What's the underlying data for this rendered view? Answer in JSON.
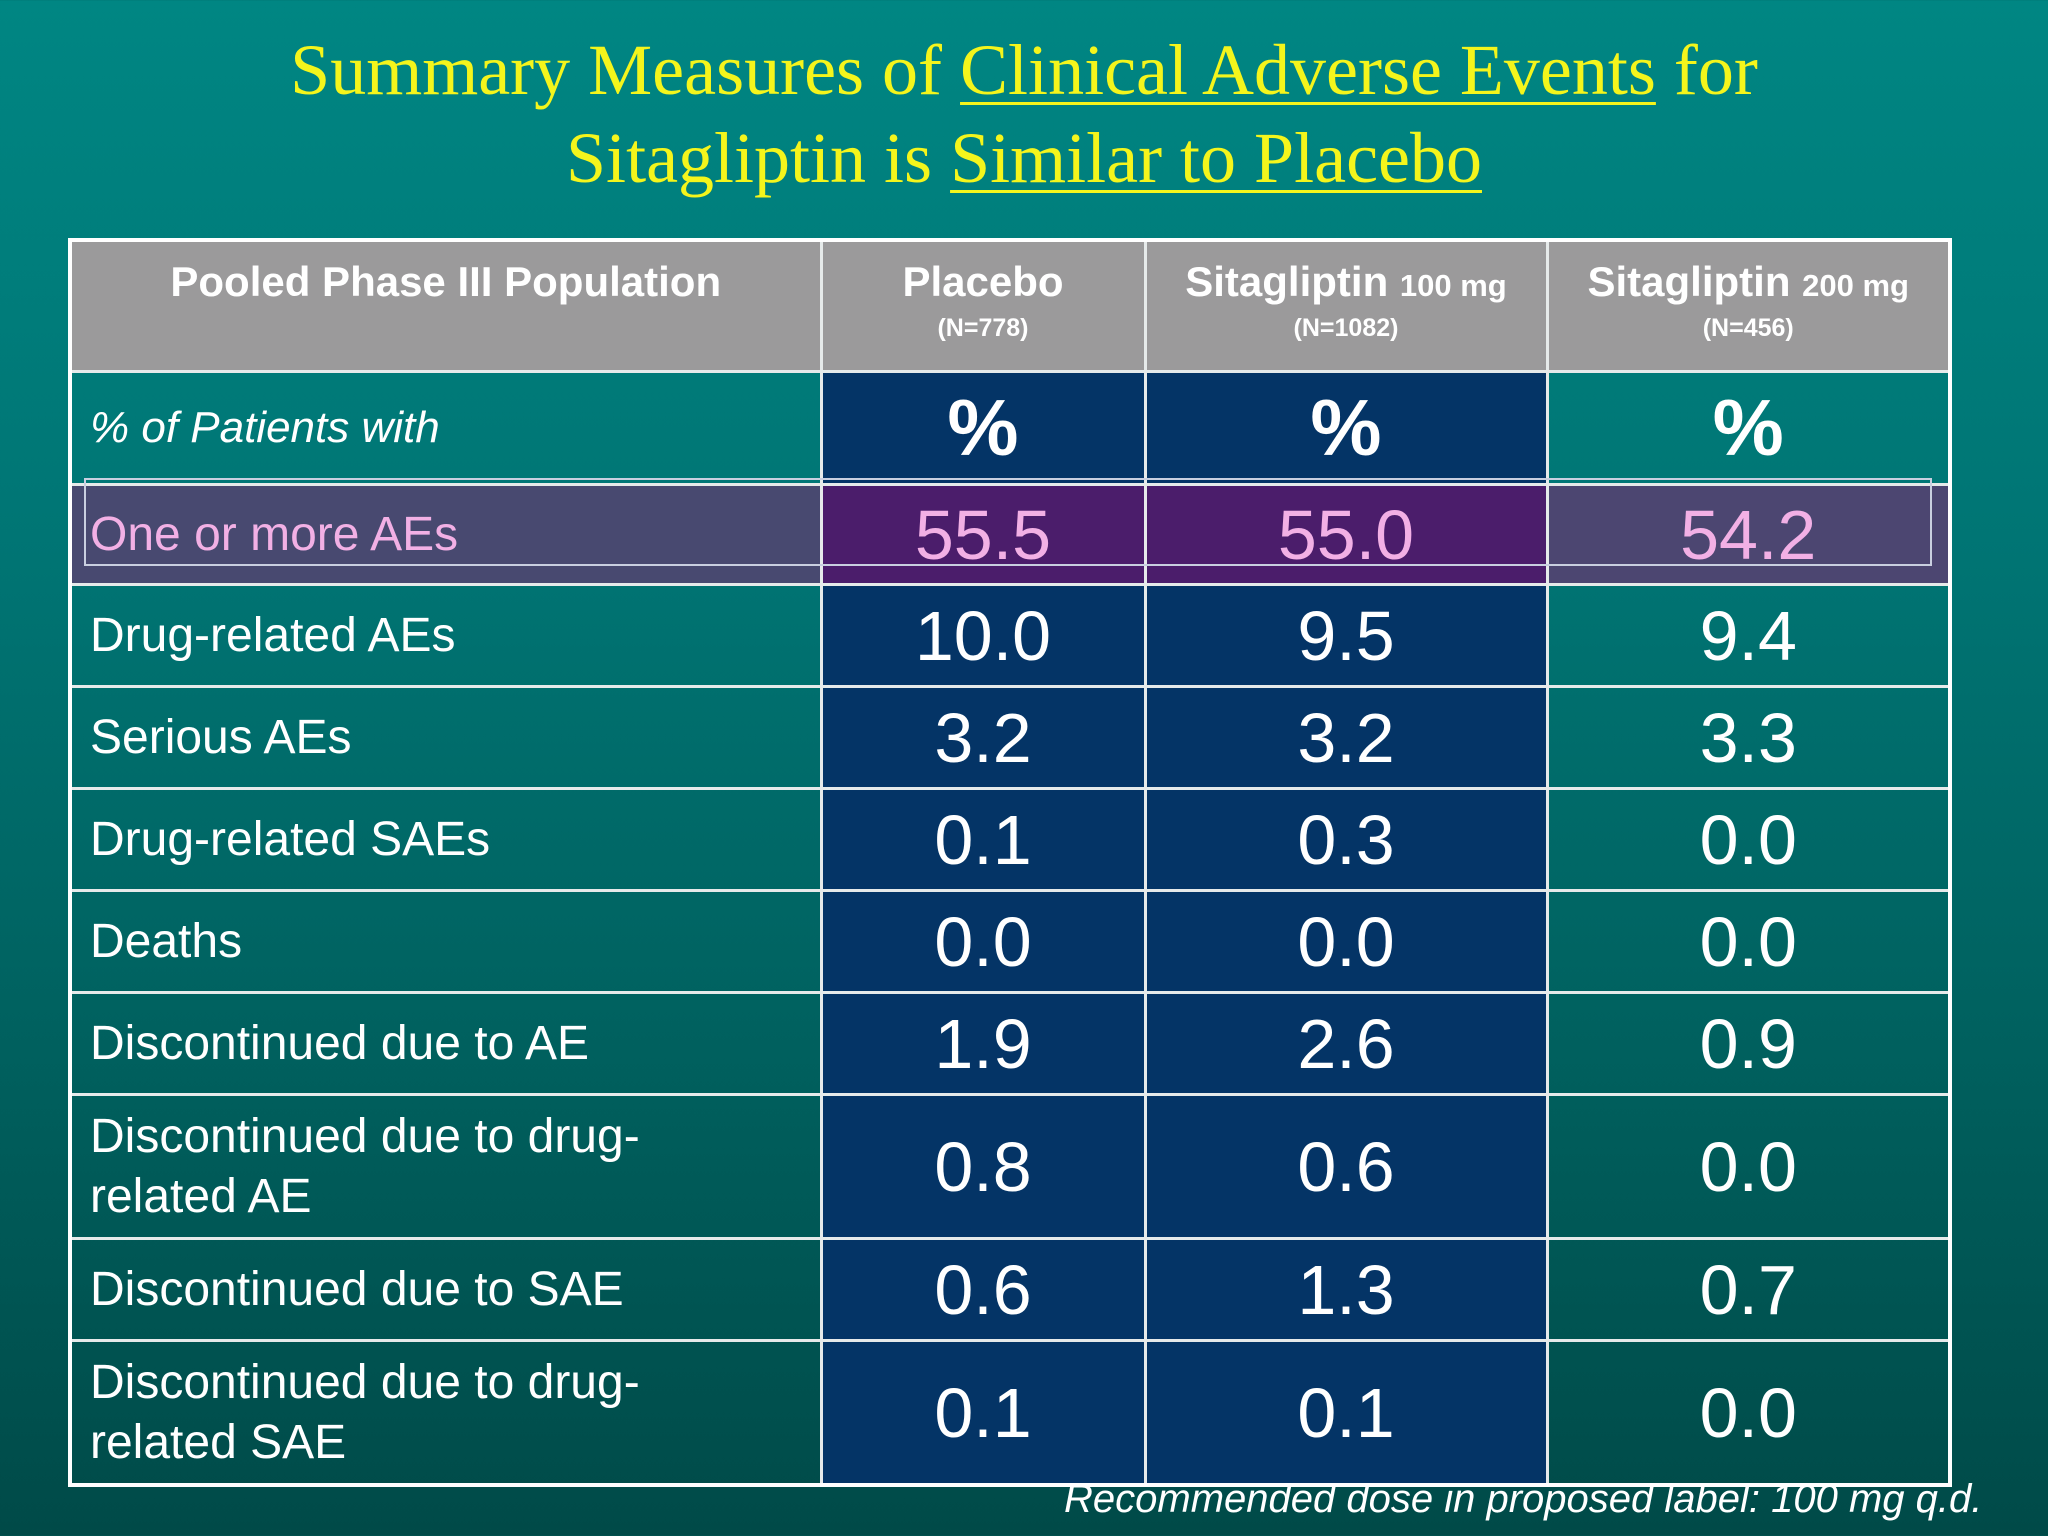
{
  "title": {
    "pre1": "Summary Measures of ",
    "u1": "Clinical Adverse Events",
    "post1": " for",
    "pre2": "Sitagliptin is ",
    "u2": "Similar to Placebo"
  },
  "table": {
    "header": {
      "col0": "Pooled Phase III Population",
      "col1": {
        "name": "Placebo",
        "dose": "",
        "n": "(N=778)"
      },
      "col2": {
        "name": "Sitagliptin",
        "dose": "100 mg",
        "n": "(N=1082)"
      },
      "col3": {
        "name": "Sitagliptin",
        "dose": "200 mg",
        "n": "(N=456)"
      }
    },
    "unit_row": {
      "label": "% of Patients with",
      "placebo": "%",
      "sita100": "%",
      "sita200": "%"
    },
    "rows": [
      {
        "label": "One or more AEs",
        "placebo": "55.5",
        "sita100": "55.0",
        "sita200": "54.2"
      },
      {
        "label": "Drug-related AEs",
        "placebo": "10.0",
        "sita100": "9.5",
        "sita200": "9.4"
      },
      {
        "label": "Serious AEs",
        "placebo": "3.2",
        "sita100": "3.2",
        "sita200": "3.3"
      },
      {
        "label": "Drug-related SAEs",
        "placebo": "0.1",
        "sita100": "0.3",
        "sita200": "0.0"
      },
      {
        "label": "Deaths",
        "placebo": "0.0",
        "sita100": "0.0",
        "sita200": "0.0"
      },
      {
        "label": "Discontinued due to AE",
        "placebo": "1.9",
        "sita100": "2.6",
        "sita200": "0.9"
      },
      {
        "label_line1": "Discontinued due to drug-",
        "label_line2": "related AE",
        "placebo": "0.8",
        "sita100": "0.6",
        "sita200": "0.0"
      },
      {
        "label": "Discontinued due to SAE",
        "placebo": "0.6",
        "sita100": "1.3",
        "sita200": "0.7"
      },
      {
        "label_line1": "Discontinued due to drug-",
        "label_line2": "related SAE",
        "placebo": "0.1",
        "sita100": "0.1",
        "sita200": "0.0"
      }
    ]
  },
  "footer": "Recommended dose in proposed label: 100 mg q.d.",
  "colors": {
    "title": "#f4f51c",
    "header_bg": "#9b9a9b",
    "data_col_bg": "#043466",
    "highlight_text": "#f2b0e5",
    "highlight_bg": "#4b1d6b"
  }
}
